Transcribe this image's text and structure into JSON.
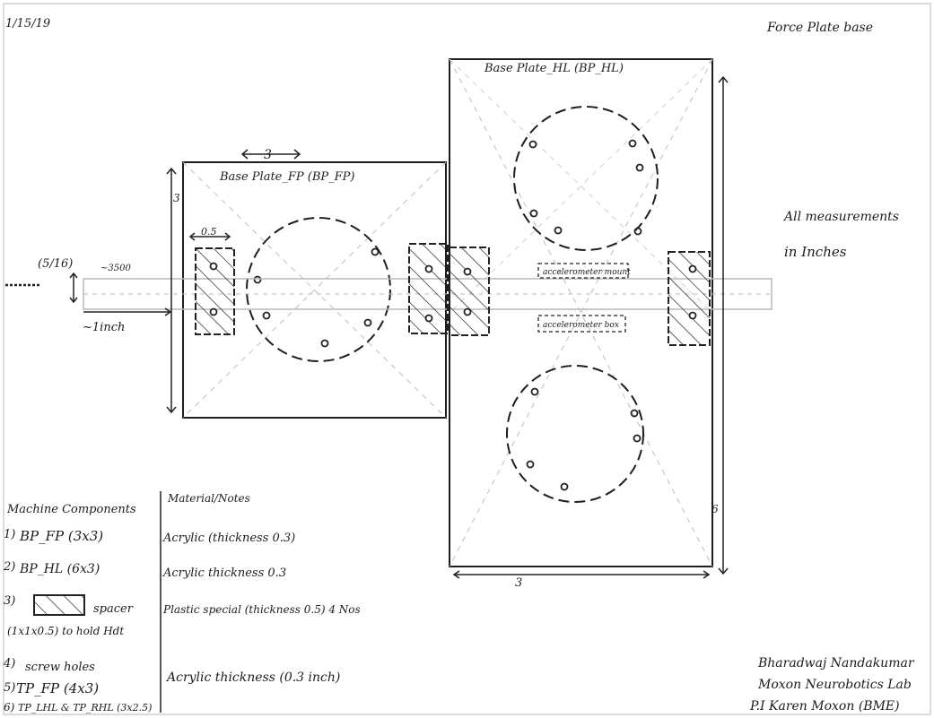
{
  "header": {
    "date": "1/15/19",
    "title": "Force Plate base"
  },
  "plates": {
    "fp_label": "Base Plate_FP (BP_FP)",
    "hl_label": "Base Plate_HL (BP_HL)"
  },
  "dimensions": {
    "fp_width_top": "3",
    "fp_height_side": "3",
    "hl_width_bottom": "3",
    "hl_height_side": "6",
    "spacer_width": "0.5",
    "rod_diameter": "(5/16)",
    "rod_offset": "~3500",
    "rod_extend": "~1inch"
  },
  "notes": {
    "all_measurements_line1": "All measurements",
    "all_measurements_line2": "in Inches",
    "accelerometer_mount": "accelerometer mount",
    "accelerometer_box": "accelerometer box"
  },
  "components": {
    "heading": "Machine Components",
    "material_heading": "Material/Notes",
    "items": [
      {
        "num": "1)",
        "name": "BP_FP (3x3)",
        "material": "Acrylic (thickness 0.3)"
      },
      {
        "num": "2)",
        "name": "BP_HL (6x3)",
        "material": "Acrylic thickness 0.3"
      },
      {
        "num": "3)",
        "name": "spacer",
        "sub": "(1x1x0.5) to hold Hdt",
        "material": "Plastic special (thickness 0.5) 4 Nos"
      },
      {
        "num": "4)",
        "name": "screw holes",
        "material": ""
      },
      {
        "num": "5)",
        "name": "TP_FP (4x3)",
        "material": "Acrylic thickness (0.3 inch)"
      },
      {
        "num": "6)",
        "name": "TP_LHL & TP_RHL (3x2.5)",
        "material": ""
      }
    ]
  },
  "signature": {
    "name": "Bharadwaj Nandakumar",
    "lab": "Moxon Neurobotics Lab",
    "pi": "P.I Karen Moxon (BME)"
  }
}
